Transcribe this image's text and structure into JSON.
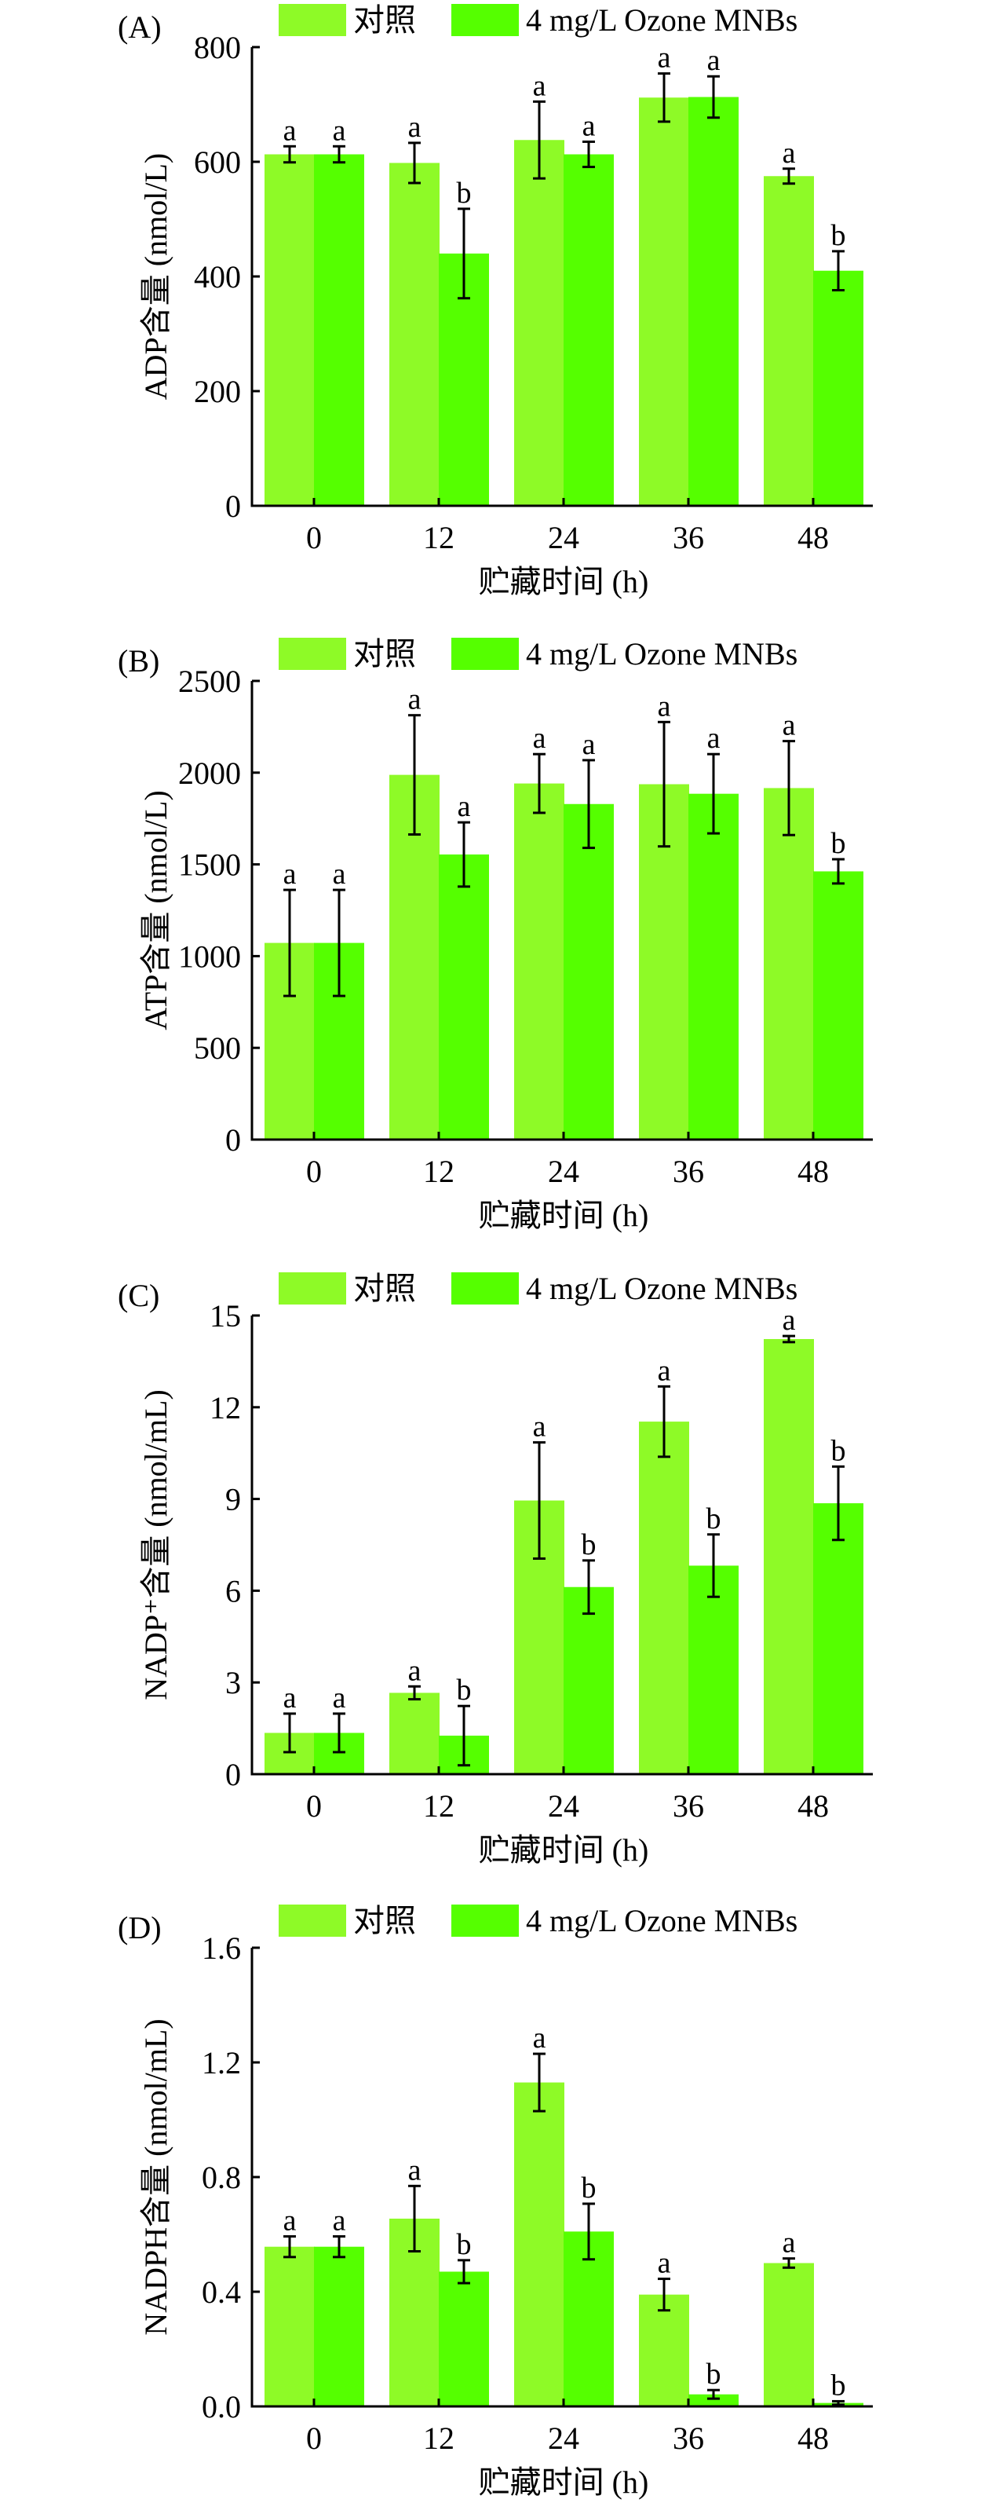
{
  "legend": {
    "items": [
      {
        "label": "对照",
        "color": "#8efa27"
      },
      {
        "label": "4 mg/L Ozone MNBs",
        "color": "#55ff00"
      }
    ]
  },
  "chart_data": [
    {
      "type": "bar",
      "panel_label": "(A)",
      "title": "",
      "xlabel": "贮藏时间 (h)",
      "ylabel": "ADP含量 (nmol/L)",
      "categories": [
        "0",
        "12",
        "24",
        "36",
        "48"
      ],
      "ylim": [
        0,
        800
      ],
      "yticks": [
        "0",
        "200",
        "400",
        "600",
        "800"
      ],
      "ytick_values": [
        0,
        200,
        400,
        600,
        800
      ],
      "grid": false,
      "legend_position": "top",
      "series": [
        {
          "name": "对照",
          "values": [
            613,
            598,
            638,
            712,
            575
          ],
          "errors": [
            14,
            35,
            67,
            42,
            13
          ],
          "letters": [
            "a",
            "a",
            "a",
            "a",
            "a"
          ]
        },
        {
          "name": "4 mg/L Ozone MNBs",
          "values": [
            613,
            440,
            613,
            713,
            410
          ],
          "errors": [
            14,
            78,
            22,
            36,
            34
          ],
          "letters": [
            "a",
            "b",
            "a",
            "a",
            "b"
          ]
        }
      ]
    },
    {
      "type": "bar",
      "panel_label": "(B)",
      "title": "",
      "xlabel": "贮藏时间 (h)",
      "ylabel": "ATP含量 (nmol/L)",
      "categories": [
        "0",
        "12",
        "24",
        "36",
        "48"
      ],
      "ylim": [
        0,
        2500
      ],
      "yticks": [
        "0",
        "500",
        "1000",
        "1500",
        "2000",
        "2500"
      ],
      "ytick_values": [
        0,
        500,
        1000,
        1500,
        2000,
        2500
      ],
      "grid": false,
      "legend_position": "top",
      "series": [
        {
          "name": "对照",
          "values": [
            1072,
            1988,
            1941,
            1937,
            1916
          ],
          "errors": [
            289,
            325,
            160,
            339,
            256
          ],
          "letters": [
            "a",
            "a",
            "a",
            "a",
            "a"
          ]
        },
        {
          "name": "4 mg/L Ozone MNBs",
          "values": [
            1072,
            1554,
            1829,
            1885,
            1462
          ],
          "errors": [
            289,
            175,
            239,
            216,
            66
          ],
          "letters": [
            "a",
            "a",
            "a",
            "a",
            "b"
          ]
        }
      ]
    },
    {
      "type": "bar",
      "panel_label": "(C)",
      "title": "",
      "xlabel": "贮藏时间 (h)",
      "ylabel": "NADP⁺含量 (nmol/mL)",
      "categories": [
        "0",
        "12",
        "24",
        "36",
        "48"
      ],
      "ylim": [
        0,
        15
      ],
      "yticks": [
        "0",
        "3",
        "6",
        "9",
        "12",
        "15"
      ],
      "ytick_values": [
        0,
        3,
        6,
        9,
        12,
        15
      ],
      "grid": false,
      "legend_position": "top",
      "series": [
        {
          "name": "对照",
          "values": [
            1.35,
            2.66,
            8.95,
            11.53,
            14.23
          ],
          "errors": [
            0.63,
            0.21,
            1.9,
            1.15,
            0.1
          ],
          "letters": [
            "a",
            "a",
            "a",
            "a",
            "a"
          ]
        },
        {
          "name": "4 mg/L Ozone MNBs",
          "values": [
            1.35,
            1.26,
            6.12,
            6.82,
            8.86
          ],
          "errors": [
            0.63,
            0.97,
            0.87,
            1.02,
            1.2
          ],
          "letters": [
            "a",
            "b",
            "b",
            "b",
            "b"
          ]
        }
      ]
    },
    {
      "type": "bar",
      "panel_label": "(D)",
      "title": "",
      "xlabel": "贮藏时间 (h)",
      "ylabel": "NADPH含量 (nmol/mL)",
      "categories": [
        "0",
        "12",
        "24",
        "36",
        "48"
      ],
      "ylim": [
        0,
        1.6
      ],
      "yticks": [
        "0.0",
        "0.4",
        "0.8",
        "1.2",
        "1.6"
      ],
      "ytick_values": [
        0,
        0.4,
        0.8,
        1.2,
        1.6
      ],
      "grid": false,
      "legend_position": "top",
      "series": [
        {
          "name": "对照",
          "values": [
            0.557,
            0.655,
            1.13,
            0.39,
            0.5
          ],
          "errors": [
            0.036,
            0.114,
            0.1,
            0.055,
            0.016
          ],
          "letters": [
            "a",
            "a",
            "a",
            "a",
            "a"
          ]
        },
        {
          "name": "4 mg/L Ozone MNBs",
          "values": [
            0.557,
            0.47,
            0.61,
            0.042,
            0.012
          ],
          "errors": [
            0.036,
            0.04,
            0.097,
            0.015,
            0.006
          ],
          "letters": [
            "a",
            "b",
            "b",
            "b",
            "b"
          ]
        }
      ]
    }
  ]
}
